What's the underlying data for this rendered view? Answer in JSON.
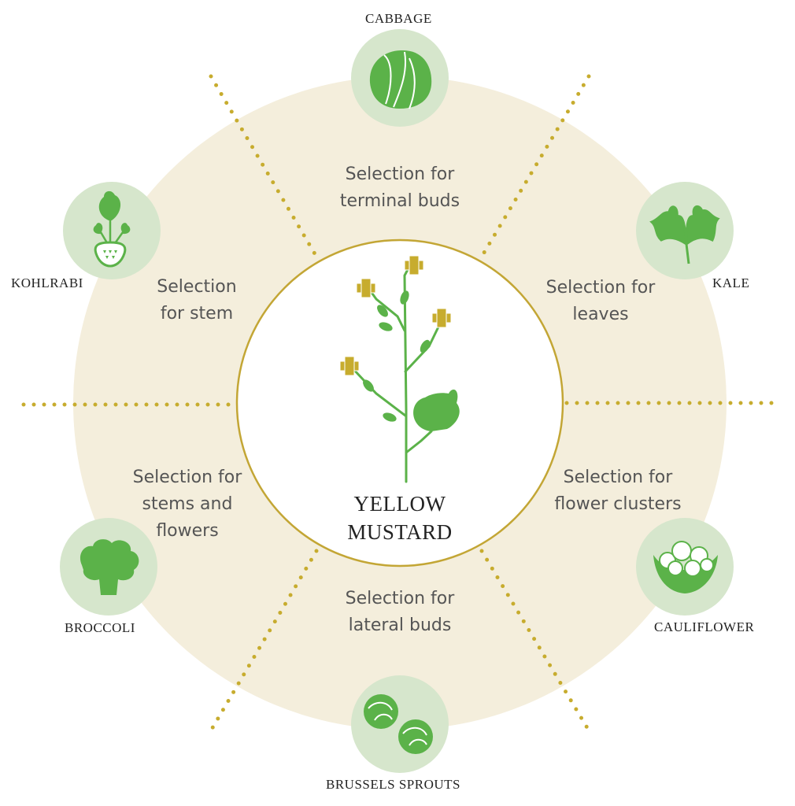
{
  "colors": {
    "ring": "#f4eedc",
    "icon_circle": "#d6e6cc",
    "green": "#5bb249",
    "gold": "#c7ac2e",
    "center_border": "#c3a635"
  },
  "center": {
    "title": "YELLOW\nMUSTARD"
  },
  "selections": [
    {
      "label": "Selection for\nterminal buds"
    },
    {
      "label": "Selection for\nleaves"
    },
    {
      "label": "Selection for\nflower clusters"
    },
    {
      "label": "Selection for\nlateral buds"
    },
    {
      "label": "Selection for\nstems and\nflowers"
    },
    {
      "label": "Selection\nfor stem"
    }
  ],
  "vegetables": [
    {
      "name": "CABBAGE",
      "icon": "cabbage-icon"
    },
    {
      "name": "KALE",
      "icon": "kale-icon"
    },
    {
      "name": "CAULIFLOWER",
      "icon": "cauliflower-icon"
    },
    {
      "name": "BRUSSELS SPROUTS",
      "icon": "brussels-sprouts-icon"
    },
    {
      "name": "BROCCOLI",
      "icon": "broccoli-icon"
    },
    {
      "name": "KOHLRABI",
      "icon": "kohlrabi-icon"
    }
  ]
}
